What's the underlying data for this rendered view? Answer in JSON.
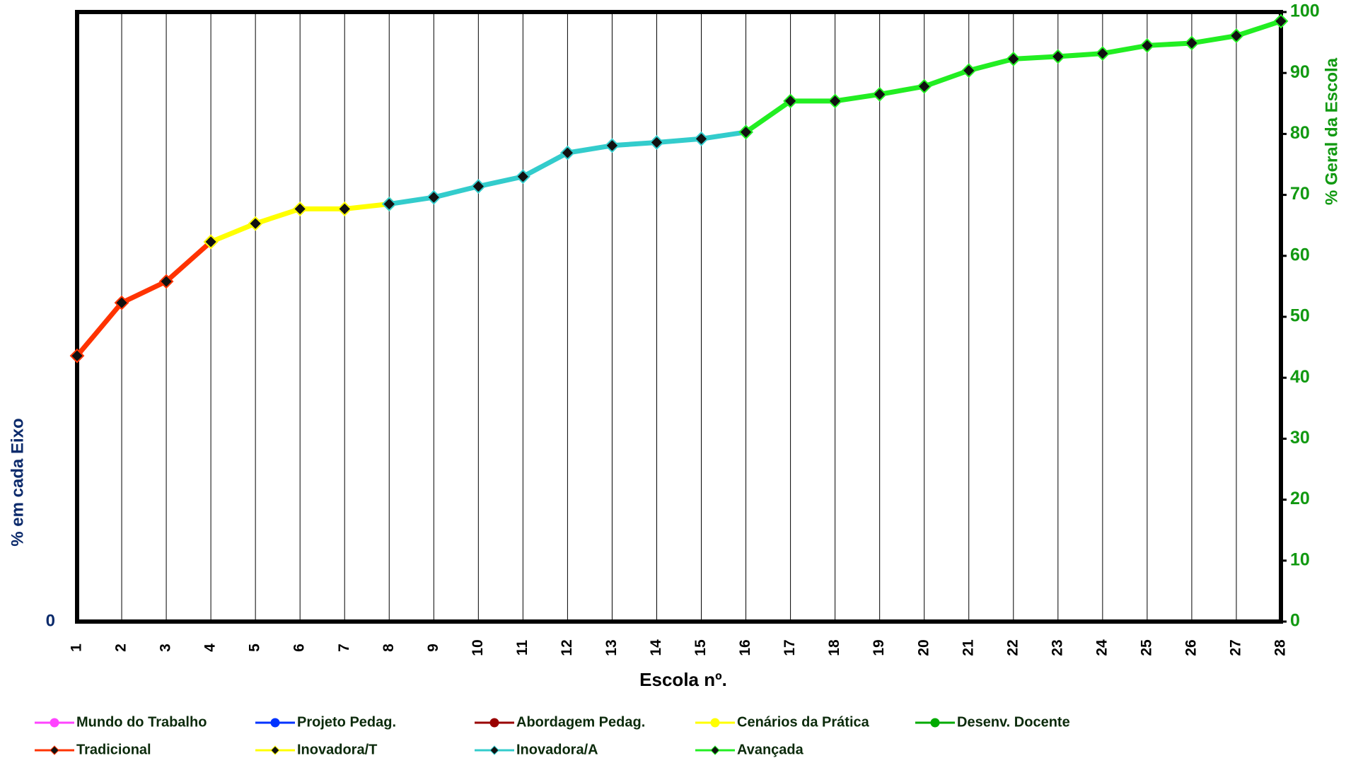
{
  "chart_data": {
    "type": "line",
    "x_label": "Escola nº.",
    "y_label": "% em cada Eixo",
    "y2_label": "% Geral da Escola",
    "x": [
      1,
      2,
      3,
      4,
      5,
      6,
      7,
      8,
      9,
      10,
      11,
      12,
      13,
      14,
      15,
      16,
      17,
      18,
      19,
      20,
      21,
      22,
      23,
      24,
      25,
      26,
      27,
      28
    ],
    "xlim": [
      1,
      28
    ],
    "xticks": [
      1,
      2,
      3,
      4,
      5,
      6,
      7,
      8,
      9,
      10,
      11,
      12,
      13,
      14,
      15,
      16,
      17,
      18,
      19,
      20,
      21,
      22,
      23,
      24,
      25,
      26,
      27,
      28
    ],
    "ylim": [
      0,
      100
    ],
    "yticks": [
      0
    ],
    "y2lim": [
      0,
      100
    ],
    "y2ticks": [
      0,
      10,
      20,
      30,
      40,
      50,
      60,
      70,
      80,
      90,
      100
    ],
    "grid": "vertical",
    "legend": "bottom",
    "series": [
      {
        "name": "Mundo do Trabalho",
        "color": "#ff44ff",
        "marker": "circle",
        "axis": "y2",
        "values": [
          null,
          null,
          null,
          null,
          null,
          null,
          null,
          null,
          null,
          null,
          null,
          null,
          null,
          null,
          null,
          null,
          null,
          null,
          null,
          null,
          null,
          null,
          null,
          null,
          null,
          null,
          null,
          null
        ]
      },
      {
        "name": "Projeto Pedag.",
        "color": "#0033ff",
        "marker": "circle",
        "axis": "y2",
        "values": [
          null,
          null,
          null,
          null,
          null,
          null,
          null,
          null,
          null,
          null,
          null,
          null,
          null,
          null,
          null,
          null,
          null,
          null,
          null,
          null,
          null,
          null,
          null,
          null,
          null,
          null,
          null,
          null
        ]
      },
      {
        "name": "Abordagem Pedag.",
        "color": "#990000",
        "marker": "circle",
        "axis": "y2",
        "values": [
          null,
          null,
          null,
          null,
          null,
          null,
          null,
          null,
          null,
          null,
          null,
          null,
          null,
          null,
          null,
          null,
          null,
          null,
          null,
          null,
          null,
          null,
          null,
          null,
          null,
          null,
          null,
          null
        ]
      },
      {
        "name": "Cenários da Prática",
        "color": "#ffff00",
        "marker": "circle",
        "axis": "y2",
        "values": [
          null,
          null,
          null,
          null,
          null,
          null,
          null,
          null,
          null,
          null,
          null,
          null,
          null,
          null,
          null,
          null,
          null,
          null,
          null,
          null,
          null,
          null,
          null,
          null,
          null,
          null,
          null,
          null
        ]
      },
      {
        "name": "Desenv. Docente",
        "color": "#00aa00",
        "marker": "circle",
        "axis": "y2",
        "values": [
          null,
          null,
          null,
          null,
          null,
          null,
          null,
          null,
          null,
          null,
          null,
          null,
          null,
          null,
          null,
          null,
          null,
          null,
          null,
          null,
          null,
          null,
          null,
          null,
          null,
          null,
          null,
          null
        ]
      },
      {
        "name": "Tradicional",
        "color": "#ff3300",
        "marker": "diamond",
        "axis": "y2",
        "values": [
          43.6,
          52.3,
          55.8,
          62.3,
          null,
          null,
          null,
          null,
          null,
          null,
          null,
          null,
          null,
          null,
          null,
          null,
          null,
          null,
          null,
          null,
          null,
          null,
          null,
          null,
          null,
          null,
          null,
          null
        ]
      },
      {
        "name": "Inovadora/T",
        "color": "#ffff00",
        "marker": "diamond",
        "axis": "y2",
        "values": [
          null,
          null,
          null,
          62.3,
          65.3,
          67.7,
          67.7,
          68.5,
          null,
          null,
          null,
          null,
          null,
          null,
          null,
          null,
          null,
          null,
          null,
          null,
          null,
          null,
          null,
          null,
          null,
          null,
          null,
          null
        ]
      },
      {
        "name": "Inovadora/A",
        "color": "#33cccc",
        "marker": "diamond",
        "axis": "y2",
        "values": [
          null,
          null,
          null,
          null,
          null,
          null,
          null,
          68.5,
          69.6,
          71.4,
          73.0,
          76.9,
          78.1,
          78.6,
          79.2,
          80.3,
          null,
          null,
          null,
          null,
          null,
          null,
          null,
          null,
          null,
          null,
          null,
          null
        ]
      },
      {
        "name": "Avançada",
        "color": "#22ee22",
        "marker": "diamond",
        "axis": "y2",
        "values": [
          null,
          null,
          null,
          null,
          null,
          null,
          null,
          null,
          null,
          null,
          null,
          null,
          null,
          null,
          null,
          80.3,
          85.4,
          85.4,
          86.5,
          87.8,
          90.4,
          92.3,
          92.7,
          93.2,
          94.5,
          94.9,
          96.1,
          98.5
        ]
      }
    ]
  }
}
